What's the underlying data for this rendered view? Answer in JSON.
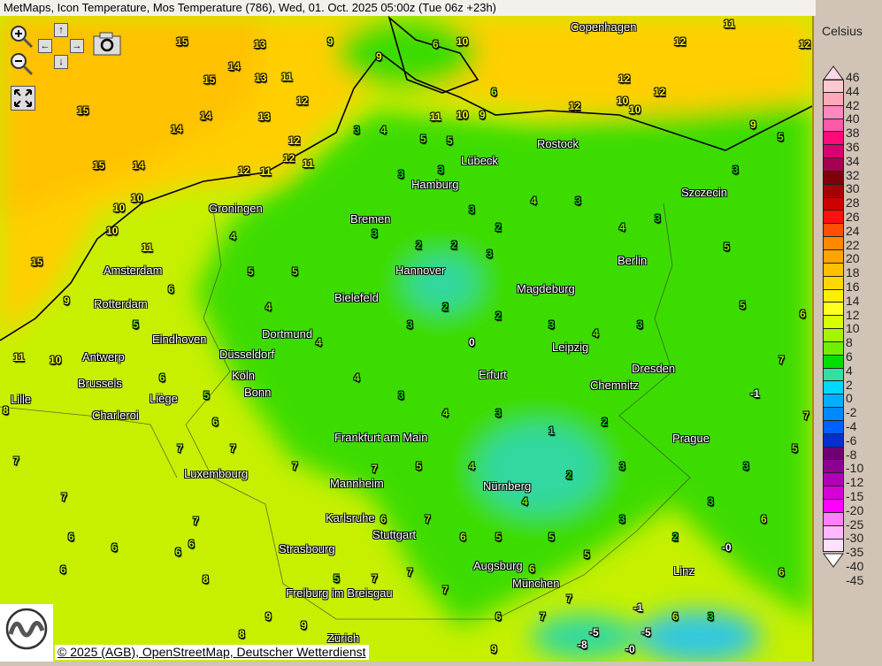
{
  "title": "MetMaps, Icon Temperature, Mos Temperature (786), Wed, 01. Oct. 2025 05:00z (Tue 06z +23h)",
  "controls": {
    "zoom_in": "zoom-in-icon",
    "zoom_out": "zoom-out-icon",
    "pan_up": "↑",
    "pan_down": "↓",
    "pan_left": "←",
    "pan_right": "→",
    "screenshot": "camera-icon",
    "fullscreen": "fullscreen-icon"
  },
  "legend": {
    "title": "Celsius",
    "labels": [
      "46",
      "44",
      "42",
      "40",
      "38",
      "36",
      "34",
      "32",
      "30",
      "28",
      "26",
      "24",
      "22",
      "20",
      "18",
      "16",
      "14",
      "12",
      "10",
      "8",
      "6",
      "4",
      "2",
      "0",
      "-2",
      "-4",
      "-6",
      "-8",
      "-10",
      "-12",
      "-15",
      "-20",
      "-25",
      "-30",
      "-35",
      "-40",
      "-45"
    ],
    "colors": [
      "#ffc8d0",
      "#ffa8b8",
      "#ff88c0",
      "#ff58a8",
      "#ff0a78",
      "#d80070",
      "#a80050",
      "#800008",
      "#a80008",
      "#d00000",
      "#ff1010",
      "#ff5000",
      "#ff8800",
      "#ffa400",
      "#ffc000",
      "#ffd800",
      "#ffee00",
      "#ffff20",
      "#d8ff00",
      "#a8f400",
      "#70f000",
      "#00e000",
      "#30e0a0",
      "#00d8ff",
      "#00b0ff",
      "#0088ff",
      "#0060ff",
      "#0030d0",
      "#700070",
      "#900090",
      "#b000b8",
      "#d800d8",
      "#ff00ff",
      "#ff80ff",
      "#ffb8ff",
      "#ffe0ff"
    ],
    "top_color": "#ffd8e8",
    "bottom_color": "#ffffff"
  },
  "map_colors": {
    "yellow": "#ffcf00",
    "lime": "#c6f000",
    "green": "#3ddc00",
    "teal": "#30d8a0"
  },
  "cities": [
    "Copenhagen",
    "Rostock",
    "Lübeck",
    "Hamburg",
    "Szczecin",
    "Groningen",
    "Bremen",
    "Amsterdam",
    "Hannover",
    "Berlin",
    "Rotterdam",
    "Bielefeld",
    "Magdeburg",
    "Eindhoven",
    "Dortmund",
    "Antwerp",
    "Düsseldorf",
    "Leipzig",
    "Dresden",
    "Brussels",
    "Köln",
    "Bonn",
    "Erfurt",
    "Chemnitz",
    "Lille",
    "Liège",
    "Charleroi",
    "Frankfurt am Main",
    "Prague",
    "Luxembourg",
    "Mannheim",
    "Nürnberg",
    "Karlsruhe",
    "Stuttgart",
    "Strasbourg",
    "Augsburg",
    "Linz",
    "München",
    "Freiburg im Breisgau",
    "Zürich"
  ],
  "stations": [
    "15",
    "13",
    "14",
    "15",
    "13",
    "11",
    "12",
    "15",
    "14",
    "14",
    "13",
    "12",
    "15",
    "14",
    "12",
    "11",
    "12",
    "11",
    "10",
    "10",
    "10",
    "11",
    "15",
    "9",
    "11",
    "10",
    "8",
    "7",
    "7",
    "6",
    "6",
    "6",
    "7",
    "6",
    "6",
    "8",
    "9",
    "9",
    "6",
    "10",
    "6",
    "10",
    "11",
    "9",
    "12",
    "12",
    "12",
    "10",
    "10",
    "12",
    "11",
    "12",
    "9",
    "5",
    "3",
    "5",
    "5",
    "6",
    "7",
    "7",
    "5",
    "-1",
    "-0",
    "-1",
    "-5",
    "-5",
    "-8",
    "-0",
    "3",
    "4",
    "5",
    "5",
    "3",
    "3",
    "3",
    "2",
    "4",
    "3",
    "4",
    "3",
    "3",
    "2",
    "2",
    "3",
    "2",
    "3",
    "0",
    "2",
    "3",
    "4",
    "3",
    "5",
    "4",
    "4",
    "4",
    "3",
    "4",
    "3",
    "1",
    "2",
    "3",
    "2",
    "4",
    "4",
    "5",
    "7",
    "7",
    "7",
    "6",
    "7",
    "5",
    "6",
    "5",
    "6",
    "4",
    "5",
    "6",
    "7",
    "6",
    "5",
    "5",
    "5",
    "3",
    "2",
    "3",
    "3",
    "6",
    "6",
    "3",
    "7",
    "7",
    "5",
    "7",
    "6",
    "7",
    "6",
    "9",
    "9",
    "8",
    "9",
    "7",
    "6"
  ],
  "copyright": "© 2025 (AGB), OpenStreetMap, Deutscher Wetterdienst",
  "logo": "METMAPS"
}
